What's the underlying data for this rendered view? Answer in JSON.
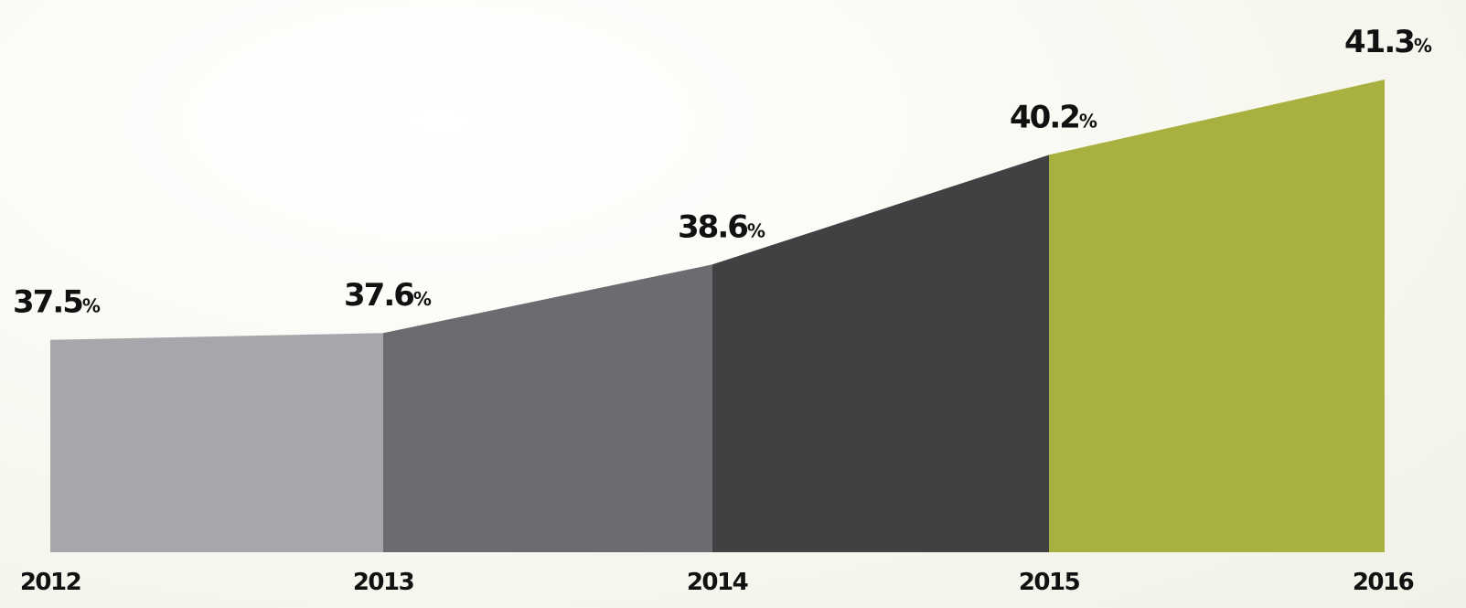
{
  "chart_data": {
    "type": "area",
    "categories": [
      "2012",
      "2013",
      "2014",
      "2015",
      "2016"
    ],
    "values": [
      37.5,
      37.6,
      38.6,
      40.2,
      41.3
    ],
    "value_labels": [
      "37.5",
      "37.6",
      "38.6",
      "40.2",
      "41.3"
    ],
    "unit": "%",
    "segment_colors": [
      "#a6a7ab",
      "#6b6c70",
      "#414042",
      "#a8b03f"
    ],
    "ylim": [
      34.4,
      41.5
    ],
    "grid": false,
    "legend": "none"
  }
}
